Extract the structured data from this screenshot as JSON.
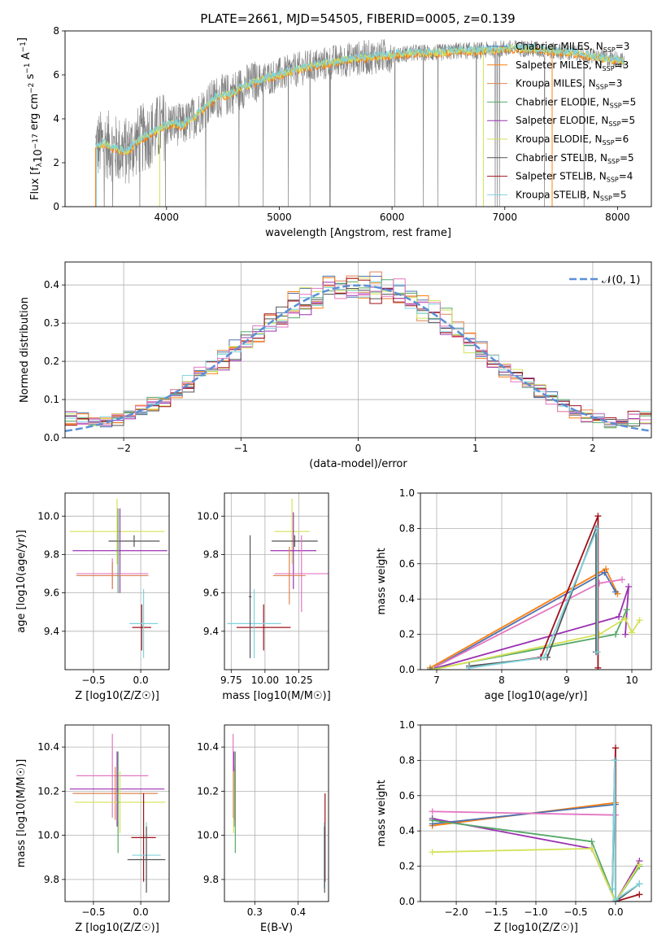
{
  "figure": {
    "title": "PLATE=2661, MJD=54505, FIBERID=0005, z=0.139"
  },
  "colors": {
    "Chabrier MILES": "#4c72b0",
    "Salpeter MILES": "#ff7f0e",
    "Kroupa MILES": "#dd8452",
    "Chabrier ELODIE": "#55a868",
    "Salpeter ELODIE": "#9b30b0",
    "Kroupa ELODIE": "#d4e157",
    "Chabrier STELIB": "#555555",
    "Salpeter STELIB": "#a0101a",
    "Kroupa STELIB": "#7fd3dc",
    "data": "#808080",
    "normal": "#5b8fd6",
    "pink": "#e377c2"
  },
  "chart_data": [
    {
      "id": "spectrum",
      "type": "line",
      "title": "PLATE=2661, MJD=54505, FIBERID=0005, z=0.139",
      "xlabel": "wavelength [Angstrom, rest frame]",
      "ylabel": "Flux [f_λ 10^-17 erg cm^-2 s^-1 A^-1]",
      "xlim": [
        3100,
        8300
      ],
      "ylim": [
        0,
        8
      ],
      "xticks": [
        4000,
        5000,
        6000,
        7000,
        8000
      ],
      "yticks": [
        0,
        2,
        4,
        6,
        8
      ],
      "grid": false,
      "legend_position": "top-right",
      "legend": [
        "Chabrier MILES, N_SSP=3",
        "Salpeter MILES, N_SSP=3",
        "Kroupa MILES, N_SSP=3",
        "Chabrier ELODIE, N_SSP=5",
        "Salpeter ELODIE, N_SSP=5",
        "Kroupa ELODIE, N_SSP=6",
        "Chabrier STELIB, N_SSP=5",
        "Salpeter STELIB, N_SSP=4",
        "Kroupa STELIB, N_SSP=5"
      ],
      "continuum": {
        "x": [
          3370,
          3450,
          3550,
          3650,
          3750,
          3850,
          3950,
          4050,
          4150,
          4250,
          4350,
          4450,
          4550,
          4700,
          4850,
          5000,
          5200,
          5400,
          5600,
          5800,
          6000,
          6200,
          6400,
          6600,
          6800,
          7000,
          7200,
          7400,
          7600,
          7800,
          8000,
          8060
        ],
        "y": [
          2.7,
          2.9,
          2.6,
          2.5,
          3.0,
          3.3,
          3.6,
          3.8,
          3.7,
          4.1,
          4.6,
          5.0,
          5.1,
          5.5,
          5.8,
          6.0,
          6.3,
          6.5,
          6.7,
          6.8,
          6.9,
          7.0,
          7.0,
          7.1,
          7.1,
          7.2,
          7.2,
          7.1,
          7.0,
          6.8,
          6.7,
          6.6
        ]
      }
    },
    {
      "id": "residuals",
      "type": "line",
      "xlabel": "(data-model)/error",
      "ylabel": "Normed distribution",
      "xlim": [
        -2.5,
        2.5
      ],
      "ylim": [
        0,
        0.46
      ],
      "xticks": [
        -2,
        -1,
        0,
        1,
        2
      ],
      "yticks": [
        0.0,
        0.1,
        0.2,
        0.3,
        0.4
      ],
      "grid": true,
      "legend_position": "top-right",
      "legend": [
        "𝒩(0, 1)"
      ]
    },
    {
      "id": "age_vs_Z",
      "type": "scatter",
      "xlabel": "Z [log10(Z/Z☉)]",
      "ylabel": "age [log10(age/yr)]",
      "xlim": [
        -0.8,
        0.3
      ],
      "ylim": [
        9.2,
        10.12
      ],
      "xticks": [
        -0.5,
        0.0
      ],
      "yticks": [
        9.4,
        9.6,
        9.8,
        10.0
      ],
      "grid": true,
      "points": [
        {
          "model": "Kroupa ELODIE",
          "x": -0.25,
          "xerr": 0.5,
          "y": 9.92,
          "yerr": 0.17
        },
        {
          "model": "Chabrier STELIB",
          "x": -0.07,
          "xerr": 0.27,
          "y": 9.87,
          "yerr": 0.03
        },
        {
          "model": "Salpeter ELODIE",
          "x": -0.22,
          "xerr": 0.5,
          "y": 9.82,
          "yerr": 0.22
        },
        {
          "model": "pink",
          "x": -0.3,
          "xerr": 0.38,
          "y": 9.7,
          "yerr": 0.08
        },
        {
          "model": "Kroupa MILES",
          "x": -0.3,
          "xerr": 0.38,
          "y": 9.69,
          "yerr": 0.07
        },
        {
          "model": "Chabrier ELODIE",
          "x": -0.24,
          "xerr": 0.01,
          "y": 9.82,
          "yerr": 0.22
        },
        {
          "model": "Salpeter STELIB",
          "x": 0.01,
          "xerr": 0.1,
          "y": 9.42,
          "yerr": 0.12
        },
        {
          "model": "Kroupa STELIB",
          "x": 0.03,
          "xerr": 0.15,
          "y": 9.44,
          "yerr": 0.18
        }
      ]
    },
    {
      "id": "age_vs_mass",
      "type": "scatter",
      "xlabel": "mass [log10(M/M☉)]",
      "ylabel": "",
      "xlim": [
        9.7,
        10.47
      ],
      "ylim": [
        9.2,
        10.12
      ],
      "xticks": [
        9.75,
        10.0,
        10.25
      ],
      "yticks": [
        9.4,
        9.6,
        9.8,
        10.0
      ],
      "grid": true,
      "points": [
        {
          "model": "Kroupa ELODIE",
          "x": 10.2,
          "xerr": 0.13,
          "y": 9.92,
          "yerr": 0.17
        },
        {
          "model": "Chabrier STELIB",
          "x": 10.22,
          "xerr": 0.17,
          "y": 9.87,
          "yerr": 0.03
        },
        {
          "model": "Salpeter ELODIE",
          "x": 10.21,
          "xerr": 0.17,
          "y": 9.82,
          "yerr": 0.2
        },
        {
          "model": "pink",
          "x": 10.27,
          "xerr": 0.2,
          "y": 9.7,
          "yerr": 0.2
        },
        {
          "model": "Kroupa MILES",
          "x": 10.18,
          "xerr": 0.12,
          "y": 9.69,
          "yerr": 0.15
        },
        {
          "model": "Salpeter STELIB",
          "x": 9.99,
          "xerr": 0.2,
          "y": 9.42,
          "yerr": 0.12
        },
        {
          "model": "Kroupa STELIB",
          "x": 9.92,
          "xerr": 0.2,
          "y": 9.44,
          "yerr": 0.18
        },
        {
          "model": "Chabrier STELIB",
          "x": 9.89,
          "xerr": 0.01,
          "y": 9.58,
          "yerr": 0.32
        }
      ]
    },
    {
      "id": "weight_vs_age",
      "type": "line",
      "xlabel": "age [log10(age/yr)]",
      "ylabel": "mass weight",
      "xlim": [
        6.75,
        10.3
      ],
      "ylim": [
        0,
        1.0
      ],
      "xticks": [
        7,
        8,
        9,
        10
      ],
      "yticks": [
        0.0,
        0.2,
        0.4,
        0.6,
        0.8,
        1.0
      ],
      "grid": true,
      "series": [
        {
          "model": "Salpeter MILES",
          "x": [
            6.9,
            9.6,
            9.78
          ],
          "y": [
            0.01,
            0.57,
            0.43
          ]
        },
        {
          "model": "Chabrier MILES",
          "x": [
            6.9,
            9.58,
            9.75
          ],
          "y": [
            0.0,
            0.55,
            0.44
          ]
        },
        {
          "model": "pink",
          "x": [
            6.9,
            9.5,
            9.85
          ],
          "y": [
            0.0,
            0.49,
            0.51
          ]
        },
        {
          "model": "Salpeter ELODIE",
          "x": [
            6.9,
            9.8,
            9.95,
            9.9
          ],
          "y": [
            0.0,
            0.3,
            0.47,
            0.2
          ]
        },
        {
          "model": "Chabrier ELODIE",
          "x": [
            6.9,
            9.75,
            9.92
          ],
          "y": [
            0.0,
            0.2,
            0.34
          ]
        },
        {
          "model": "Kroupa ELODIE",
          "x": [
            6.95,
            9.5,
            9.9,
            10.0,
            10.12
          ],
          "y": [
            0.0,
            0.2,
            0.29,
            0.21,
            0.28
          ]
        },
        {
          "model": "Salpeter STELIB",
          "x": [
            7.5,
            8.6,
            9.48,
            9.48
          ],
          "y": [
            0.01,
            0.07,
            0.87,
            0.01
          ]
        },
        {
          "model": "Chabrier STELIB",
          "x": [
            7.5,
            8.7,
            9.45,
            9.45
          ],
          "y": [
            0.02,
            0.07,
            0.8,
            0.1
          ]
        },
        {
          "model": "Kroupa STELIB",
          "x": [
            7.5,
            8.65,
            9.47,
            9.47
          ],
          "y": [
            0.01,
            0.07,
            0.8,
            0.1
          ]
        }
      ]
    },
    {
      "id": "mass_vs_Z",
      "type": "scatter",
      "xlabel": "Z [log10(Z/Z☉)]",
      "ylabel": "mass [log10(M/M☉)]",
      "xlim": [
        -0.8,
        0.3
      ],
      "ylim": [
        9.7,
        10.5
      ],
      "xticks": [
        -0.5,
        0.0
      ],
      "yticks": [
        9.8,
        10.0,
        10.2,
        10.4
      ],
      "grid": true,
      "points": [
        {
          "model": "pink",
          "x": -0.3,
          "xerr": 0.38,
          "y": 10.27,
          "yerr": 0.19
        },
        {
          "model": "Salpeter ELODIE",
          "x": -0.25,
          "xerr": 0.5,
          "y": 10.21,
          "yerr": 0.17
        },
        {
          "model": "Kroupa MILES",
          "x": -0.27,
          "xerr": 0.45,
          "y": 10.19,
          "yerr": 0.12
        },
        {
          "model": "Kroupa ELODIE",
          "x": -0.22,
          "xerr": 0.48,
          "y": 10.15,
          "yerr": 0.14
        },
        {
          "model": "Chabrier ELODIE",
          "x": -0.24,
          "xerr": 0.01,
          "y": 10.15,
          "yerr": 0.23
        },
        {
          "model": "Salpeter STELIB",
          "x": 0.03,
          "xerr": 0.13,
          "y": 9.99,
          "yerr": 0.2
        },
        {
          "model": "Kroupa STELIB",
          "x": 0.06,
          "xerr": 0.15,
          "y": 9.91,
          "yerr": 0.15
        },
        {
          "model": "Chabrier STELIB",
          "x": 0.06,
          "xerr": 0.2,
          "y": 9.89,
          "yerr": 0.15
        }
      ]
    },
    {
      "id": "mass_vs_EBV",
      "type": "scatter",
      "xlabel": "E(B-V)",
      "ylabel": "",
      "xlim": [
        0.23,
        0.47
      ],
      "ylim": [
        9.7,
        10.5
      ],
      "xticks": [
        0.3,
        0.4
      ],
      "yticks": [
        9.8,
        10.0,
        10.2,
        10.4
      ],
      "grid": true,
      "points": [
        {
          "model": "pink",
          "x": 0.25,
          "yerr": 0.19,
          "y": 10.27
        },
        {
          "model": "Salpeter ELODIE",
          "x": 0.252,
          "yerr": 0.17,
          "y": 10.21
        },
        {
          "model": "Kroupa MILES",
          "x": 0.254,
          "yerr": 0.12,
          "y": 10.19
        },
        {
          "model": "Kroupa ELODIE",
          "x": 0.251,
          "yerr": 0.14,
          "y": 10.15
        },
        {
          "model": "Chabrier ELODIE",
          "x": 0.255,
          "yerr": 0.23,
          "y": 10.15
        },
        {
          "model": "Salpeter STELIB",
          "x": 0.462,
          "yerr": 0.2,
          "y": 9.99
        },
        {
          "model": "Kroupa STELIB",
          "x": 0.46,
          "yerr": 0.15,
          "y": 9.91
        },
        {
          "model": "Chabrier STELIB",
          "x": 0.461,
          "yerr": 0.15,
          "y": 9.89
        }
      ]
    },
    {
      "id": "weight_vs_Z",
      "type": "line",
      "xlabel": "Z [log10(Z/Z☉)]",
      "ylabel": "mass weight",
      "xlim": [
        -2.45,
        0.45
      ],
      "ylim": [
        0,
        1.0
      ],
      "xticks": [
        -2.0,
        -1.5,
        -1.0,
        -0.5,
        0.0
      ],
      "yticks": [
        0.0,
        0.2,
        0.4,
        0.6,
        0.8,
        1.0
      ],
      "grid": true,
      "series": [
        {
          "model": "Salpeter MILES",
          "x": [
            -2.3,
            0.0
          ],
          "y": [
            0.43,
            0.56
          ]
        },
        {
          "model": "Chabrier MILES",
          "x": [
            -2.3,
            0.0
          ],
          "y": [
            0.44,
            0.55
          ]
        },
        {
          "model": "pink",
          "x": [
            -2.3,
            0.0
          ],
          "y": [
            0.51,
            0.49
          ]
        },
        {
          "model": "Salpeter ELODIE",
          "x": [
            -2.3,
            -0.3,
            0.0,
            0.3
          ],
          "y": [
            0.47,
            0.3,
            0.0,
            0.23
          ]
        },
        {
          "model": "Chabrier ELODIE",
          "x": [
            -2.3,
            -0.3,
            0.0,
            0.3
          ],
          "y": [
            0.46,
            0.34,
            0.0,
            0.2
          ]
        },
        {
          "model": "Kroupa ELODIE",
          "x": [
            -2.3,
            -0.3,
            0.0,
            0.3
          ],
          "y": [
            0.28,
            0.3,
            0.0,
            0.21
          ]
        },
        {
          "model": "Salpeter STELIB",
          "x": [
            -0.04,
            0.0,
            0.0,
            0.3
          ],
          "y": [
            0.07,
            0.87,
            0.0,
            0.04
          ]
        },
        {
          "model": "Chabrier STELIB",
          "x": [
            -0.04,
            -0.01,
            0.0,
            0.3
          ],
          "y": [
            0.07,
            0.8,
            0.0,
            0.1
          ]
        },
        {
          "model": "Kroupa STELIB",
          "x": [
            -0.04,
            -0.01,
            0.0,
            0.3
          ],
          "y": [
            0.07,
            0.8,
            0.01,
            0.1
          ]
        }
      ]
    }
  ]
}
